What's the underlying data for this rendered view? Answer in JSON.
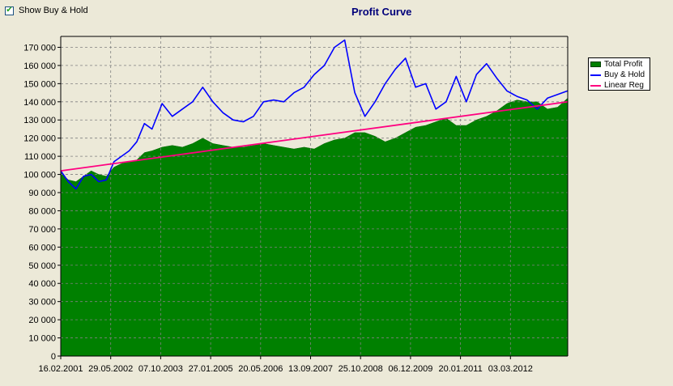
{
  "toolbar": {
    "show_buy_hold_label": "Show Buy & Hold",
    "show_buy_hold_checked": true
  },
  "chart_data": {
    "type": "area",
    "title": "Profit Curve",
    "xlabel": "",
    "ylabel": "",
    "x_tick_labels": [
      "16.02.2001",
      "29.05.2002",
      "07.10.2003",
      "27.01.2005",
      "20.05.2006",
      "13.09.2007",
      "25.10.2008",
      "06.12.2009",
      "20.01.2011",
      "03.03.2012"
    ],
    "y_tick_labels": [
      "0",
      "10 000",
      "20 000",
      "30 000",
      "40 000",
      "50 000",
      "60 000",
      "70 000",
      "80 000",
      "90 000",
      "100 000",
      "110 000",
      "120 000",
      "130 000",
      "140 000",
      "150 000",
      "160 000",
      "170 000"
    ],
    "ylim": [
      0,
      176000
    ],
    "grid": true,
    "legend_position": "right",
    "x_index": [
      0,
      0.015,
      0.03,
      0.045,
      0.06,
      0.075,
      0.09,
      0.105,
      0.12,
      0.135,
      0.15,
      0.165,
      0.18,
      0.2,
      0.22,
      0.24,
      0.26,
      0.28,
      0.3,
      0.32,
      0.34,
      0.36,
      0.38,
      0.4,
      0.42,
      0.44,
      0.46,
      0.48,
      0.5,
      0.52,
      0.54,
      0.56,
      0.58,
      0.6,
      0.62,
      0.64,
      0.66,
      0.68,
      0.7,
      0.72,
      0.74,
      0.76,
      0.78,
      0.8,
      0.82,
      0.84,
      0.86,
      0.88,
      0.9,
      0.92,
      0.94,
      0.96,
      0.98,
      1.0
    ],
    "series": [
      {
        "name": "Total Profit",
        "color": "#008000",
        "style": "area",
        "values": [
          101000,
          97000,
          96000,
          99000,
          102000,
          100000,
          99000,
          104000,
          106000,
          107000,
          108000,
          112000,
          113000,
          115000,
          116000,
          115000,
          117000,
          120000,
          117000,
          116000,
          115000,
          115000,
          116000,
          117000,
          116000,
          115000,
          114000,
          115000,
          114000,
          117000,
          119000,
          120000,
          123000,
          123000,
          121000,
          118000,
          120000,
          123000,
          126000,
          127000,
          129000,
          131000,
          127000,
          127000,
          130000,
          132000,
          135000,
          139000,
          141000,
          140000,
          140000,
          136000,
          137000,
          142000
        ]
      },
      {
        "name": "Buy & Hold",
        "color": "#0000ff",
        "style": "line",
        "values": [
          102000,
          96000,
          92000,
          99000,
          100000,
          96000,
          97000,
          107000,
          110000,
          113000,
          118000,
          128000,
          125000,
          139000,
          132000,
          136000,
          140000,
          148000,
          140000,
          134000,
          130000,
          129000,
          132000,
          140000,
          141000,
          140000,
          145000,
          148000,
          155000,
          160000,
          170000,
          174000,
          145000,
          132000,
          140000,
          150000,
          158000,
          164000,
          148000,
          150000,
          136000,
          140000,
          154000,
          140000,
          155000,
          161000,
          153000,
          146000,
          143000,
          141000,
          136000,
          142000,
          144000,
          146000
        ]
      },
      {
        "name": "Linear Reg",
        "color": "#ff0080",
        "style": "line",
        "values": [
          102000,
          140000
        ]
      }
    ]
  }
}
